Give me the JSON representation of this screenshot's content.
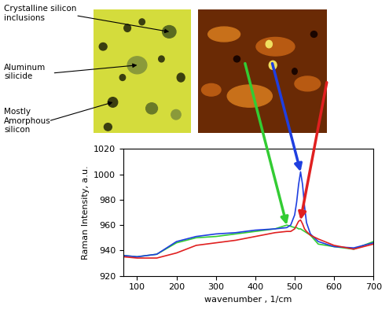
{
  "chart_data": {
    "type": "line",
    "xlabel": "wavenumber , 1/cm",
    "ylabel": "Raman Intensity, a.u.",
    "x": [
      65,
      100,
      150,
      200,
      250,
      300,
      350,
      400,
      450,
      480,
      490,
      500,
      505,
      510,
      515,
      520,
      525,
      530,
      540,
      560,
      600,
      650,
      700
    ],
    "series": [
      {
        "color": "#33cc33",
        "values": [
          936,
          935,
          937,
          946,
          950,
          951,
          953,
          955,
          957,
          960,
          959,
          958,
          958,
          957,
          957,
          956,
          955,
          954,
          952,
          945,
          943,
          941,
          947
        ]
      },
      {
        "color": "#1f3fe0",
        "values": [
          936,
          935,
          937,
          947,
          951,
          953,
          954,
          956,
          957,
          958,
          960,
          968,
          978,
          992,
          1002,
          992,
          975,
          962,
          953,
          947,
          943,
          942,
          946
        ]
      },
      {
        "color": "#e02020",
        "values": [
          935,
          934,
          934,
          938,
          944,
          946,
          948,
          951,
          954,
          955,
          955,
          957,
          960,
          963,
          964,
          961,
          957,
          955,
          952,
          949,
          944,
          941,
          945
        ]
      }
    ],
    "xlim": [
      65,
      700
    ],
    "ylim": [
      920,
      1020
    ],
    "xticks": [
      100,
      200,
      300,
      400,
      500,
      600,
      700
    ],
    "yticks": [
      920,
      940,
      960,
      980,
      1000,
      1020
    ],
    "annotations": [
      "Crystalline silicon\ninclusions",
      "Aluminum\nsilicide",
      "Mostly\nAmorphous\nsilicon"
    ]
  }
}
